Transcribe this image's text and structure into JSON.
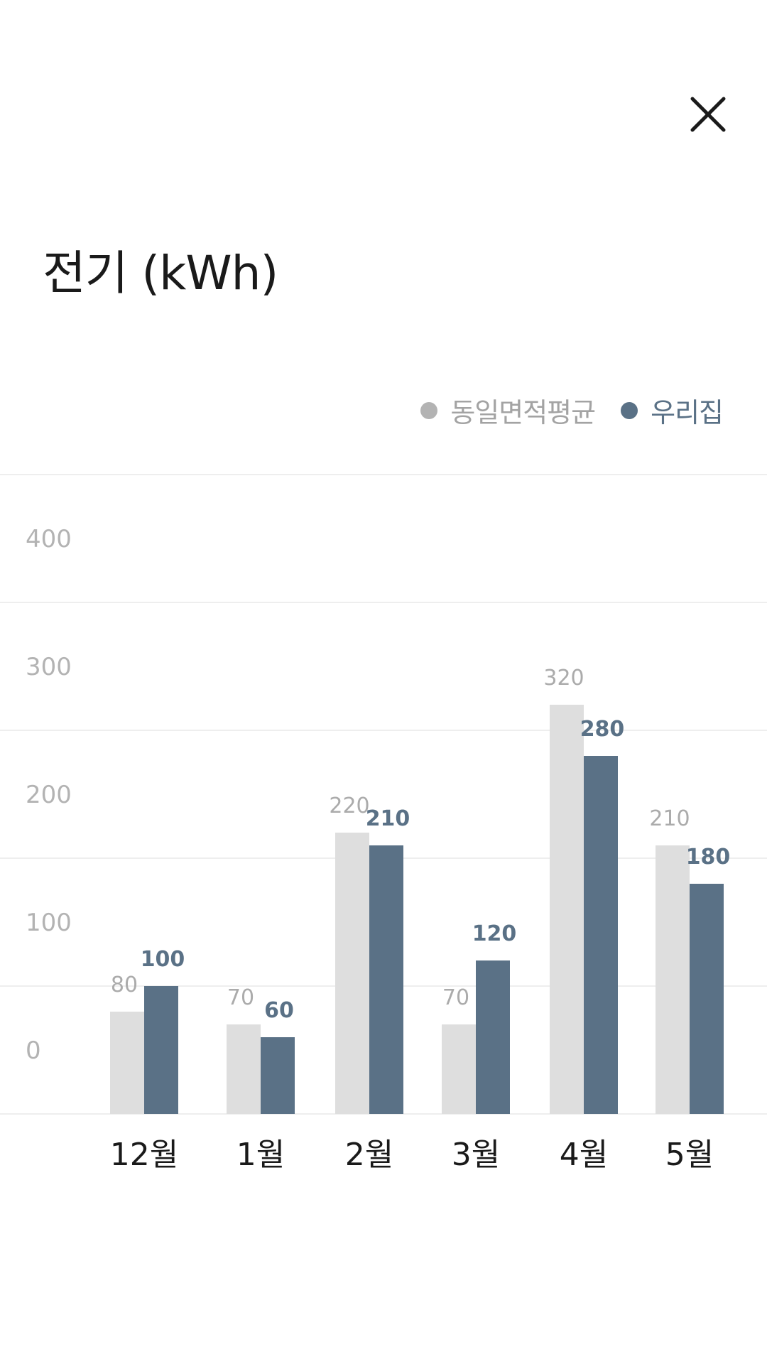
{
  "header": {
    "close_icon": "close-icon",
    "title": "전기 (kWh)"
  },
  "legend": {
    "placement": "top-right",
    "items": [
      {
        "label": "동일면적평균",
        "color": "#b3b3b3"
      },
      {
        "label": "우리집",
        "color": "#5a7186"
      }
    ]
  },
  "chart_data": {
    "type": "bar",
    "categories": [
      "12월",
      "1월",
      "2월",
      "3월",
      "4월",
      "5월"
    ],
    "series": [
      {
        "name": "동일면적평균",
        "values": [
          80,
          70,
          220,
          70,
          320,
          210
        ],
        "color": "#dedede",
        "label_color": "#ababab"
      },
      {
        "name": "우리집",
        "values": [
          100,
          60,
          210,
          120,
          280,
          180
        ],
        "color": "#5a7186",
        "label_color": "#5a7186"
      }
    ],
    "y_tick_labels": [
      "400",
      "300",
      "200",
      "100",
      "0"
    ],
    "ylim": [
      0,
      400
    ],
    "grid": true,
    "title": "전기 (kWh)"
  }
}
